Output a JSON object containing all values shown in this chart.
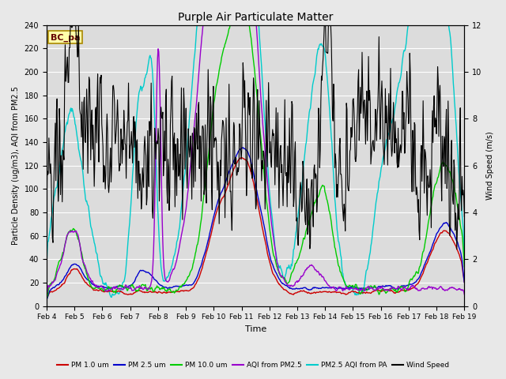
{
  "title": "Purple Air Particulate Matter",
  "ylabel_left": "Particle Density (ug/m3), AQI from PM2.5",
  "ylabel_right": "Wind Speed (m/s)",
  "xlabel": "Time",
  "ylim_left": [
    0,
    240
  ],
  "ylim_right": [
    0,
    12
  ],
  "annotation_text": "BC_pa",
  "x_tick_labels": [
    "Feb 4",
    "Feb 5",
    "Feb 6",
    "Feb 7",
    "Feb 8",
    "Feb 9",
    "Feb 10",
    "Feb 11",
    "Feb 12",
    "Feb 13",
    "Feb 14",
    "Feb 15",
    "Feb 16",
    "Feb 17",
    "Feb 18",
    "Feb 19"
  ],
  "legend_entries": [
    {
      "label": "PM 1.0 um",
      "color": "#cc0000",
      "lw": 1.0
    },
    {
      "label": "PM 2.5 um",
      "color": "#0000cc",
      "lw": 1.0
    },
    {
      "label": "PM 10.0 um",
      "color": "#00cc00",
      "lw": 1.0
    },
    {
      "label": "AQI from PM2.5",
      "color": "#9900cc",
      "lw": 1.0
    },
    {
      "label": "PM2.5 AQI from PA",
      "color": "#00cccc",
      "lw": 1.0
    },
    {
      "label": "Wind Speed",
      "color": "#000000",
      "lw": 0.8
    }
  ],
  "fig_bg_color": "#e8e8e8",
  "plot_bg_color": "#dcdcdc",
  "grid_color": "#ffffff",
  "n_points": 720
}
